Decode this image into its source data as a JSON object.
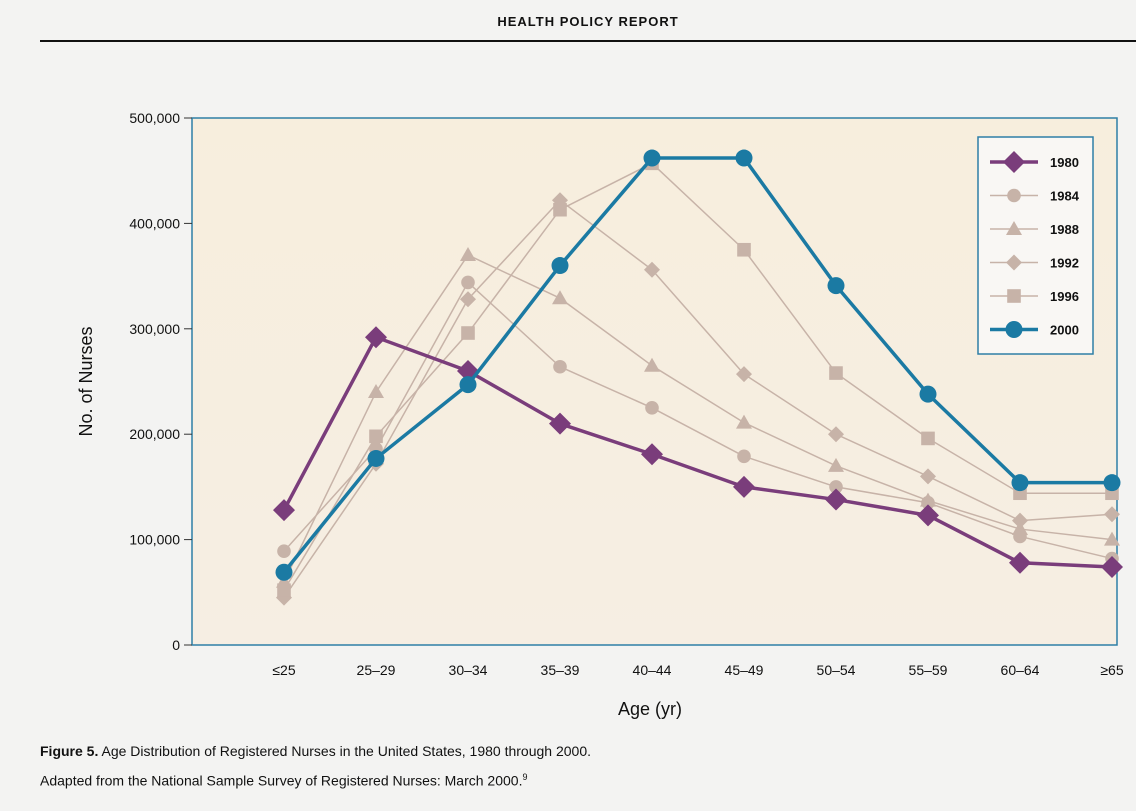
{
  "header": {
    "title": "HEALTH POLICY REPORT"
  },
  "caption": {
    "figure_label": "Figure 5.",
    "line1": "Age Distribution of Registered Nurses in the United States, 1980 through 2000.",
    "line2": "Adapted from the National Sample Survey of Registered Nurses: March 2000.",
    "ref": "9"
  },
  "colors": {
    "plot_bg_top": "#f7eedd",
    "plot_bg_bottom": "#f6eee3",
    "frame": "#2e7fa6",
    "highlight_1980": "#7a3d7b",
    "highlight_2000": "#1b7aa3",
    "muted_series": "#c7b3a8"
  },
  "chart_data": {
    "type": "line",
    "xlabel": "Age (yr)",
    "ylabel": "No. of Nurses",
    "categories": [
      "<25",
      "25–29",
      "30–34",
      "35–39",
      "40–44",
      "45–49",
      "50–54",
      "55–59",
      "60–64",
      ">65"
    ],
    "category_labels": [
      "≤25",
      "25–29",
      "30–34",
      "35–39",
      "40–44",
      "45–49",
      "50–54",
      "55–59",
      "60–64",
      "≥65"
    ],
    "ylim": [
      0,
      500000
    ],
    "yticks": [
      0,
      100000,
      200000,
      300000,
      400000,
      500000
    ],
    "ytick_labels": [
      "0",
      "100,000",
      "200,000",
      "300,000",
      "400,000",
      "500,000"
    ],
    "legend_position": "top-right",
    "series": [
      {
        "name": "1980",
        "marker": "diamond",
        "color": "#7a3d7b",
        "width": 3.5,
        "markersize": 11,
        "values": [
          128000,
          292000,
          260000,
          210000,
          181000,
          150000,
          138000,
          123000,
          78000,
          74000
        ]
      },
      {
        "name": "1984",
        "marker": "circle",
        "color": "#c7b3a8",
        "width": 1.5,
        "markersize": 8,
        "values": [
          89000,
          186000,
          344000,
          264000,
          225000,
          179000,
          150000,
          135000,
          103000,
          82000
        ]
      },
      {
        "name": "1988",
        "marker": "triangle",
        "color": "#c7b3a8",
        "width": 1.5,
        "markersize": 8,
        "values": [
          60000,
          240000,
          370000,
          329000,
          265000,
          211000,
          170000,
          137000,
          110000,
          100000
        ]
      },
      {
        "name": "1992",
        "marker": "diamond",
        "color": "#c7b3a8",
        "width": 1.5,
        "markersize": 8,
        "values": [
          45000,
          172000,
          328000,
          422000,
          356000,
          257000,
          200000,
          160000,
          118000,
          124000
        ]
      },
      {
        "name": "1996",
        "marker": "square",
        "color": "#c7b3a8",
        "width": 1.5,
        "markersize": 8,
        "values": [
          52000,
          198000,
          296000,
          413000,
          457000,
          375000,
          258000,
          196000,
          144000,
          144000
        ]
      },
      {
        "name": "2000",
        "marker": "circle",
        "color": "#1b7aa3",
        "width": 3.5,
        "markersize": 10,
        "values": [
          69000,
          177000,
          247000,
          360000,
          462000,
          462000,
          341000,
          238000,
          154000,
          154000
        ]
      }
    ]
  }
}
